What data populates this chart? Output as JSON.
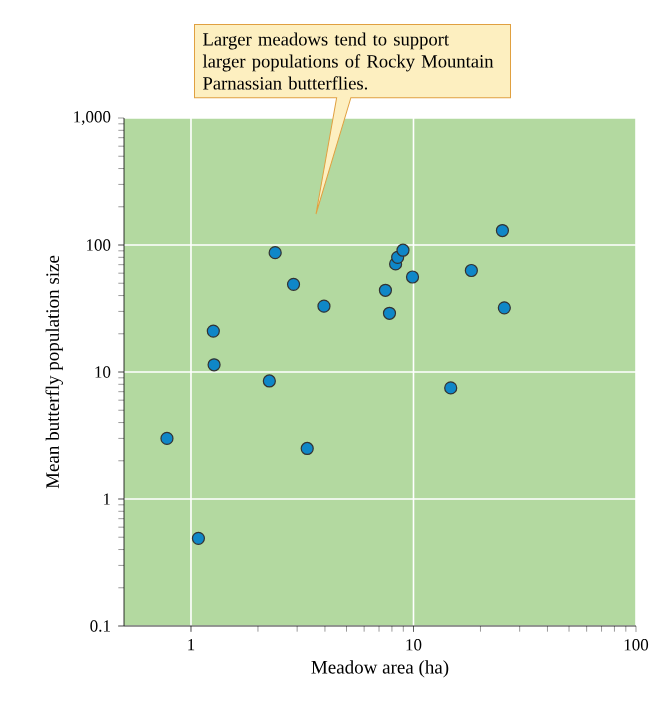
{
  "chart_data": {
    "type": "scatter",
    "xlabel": "Meadow area (ha)",
    "ylabel": "Mean butterfly population size",
    "annotations": [
      "Larger meadows tend to support larger populations of Rocky Mountain Parnassian butterflies."
    ],
    "log": "xy",
    "grid": true,
    "marker": "circle",
    "xlim": [
      0.5,
      100
    ],
    "ylim": [
      0.1,
      1000
    ],
    "xticks": [
      1,
      10,
      100
    ],
    "yticks": [
      0.1,
      1,
      10,
      100,
      {
        "value": 1000,
        "label": "1,000"
      }
    ],
    "series": [
      {
        "color": "#0f87c8",
        "x": [
          0.78,
          1.08,
          1.26,
          1.27,
          2.25,
          2.39,
          2.89,
          3.33,
          3.96,
          7.48,
          7.8,
          8.31,
          8.49,
          8.97,
          9.9,
          14.7,
          18.2,
          25.1,
          25.6
        ],
        "values": [
          3.0,
          0.49,
          21,
          11.4,
          8.5,
          87,
          49,
          2.5,
          33,
          44,
          29,
          71,
          80,
          91,
          56,
          7.5,
          63,
          130,
          32
        ]
      }
    ]
  }
}
